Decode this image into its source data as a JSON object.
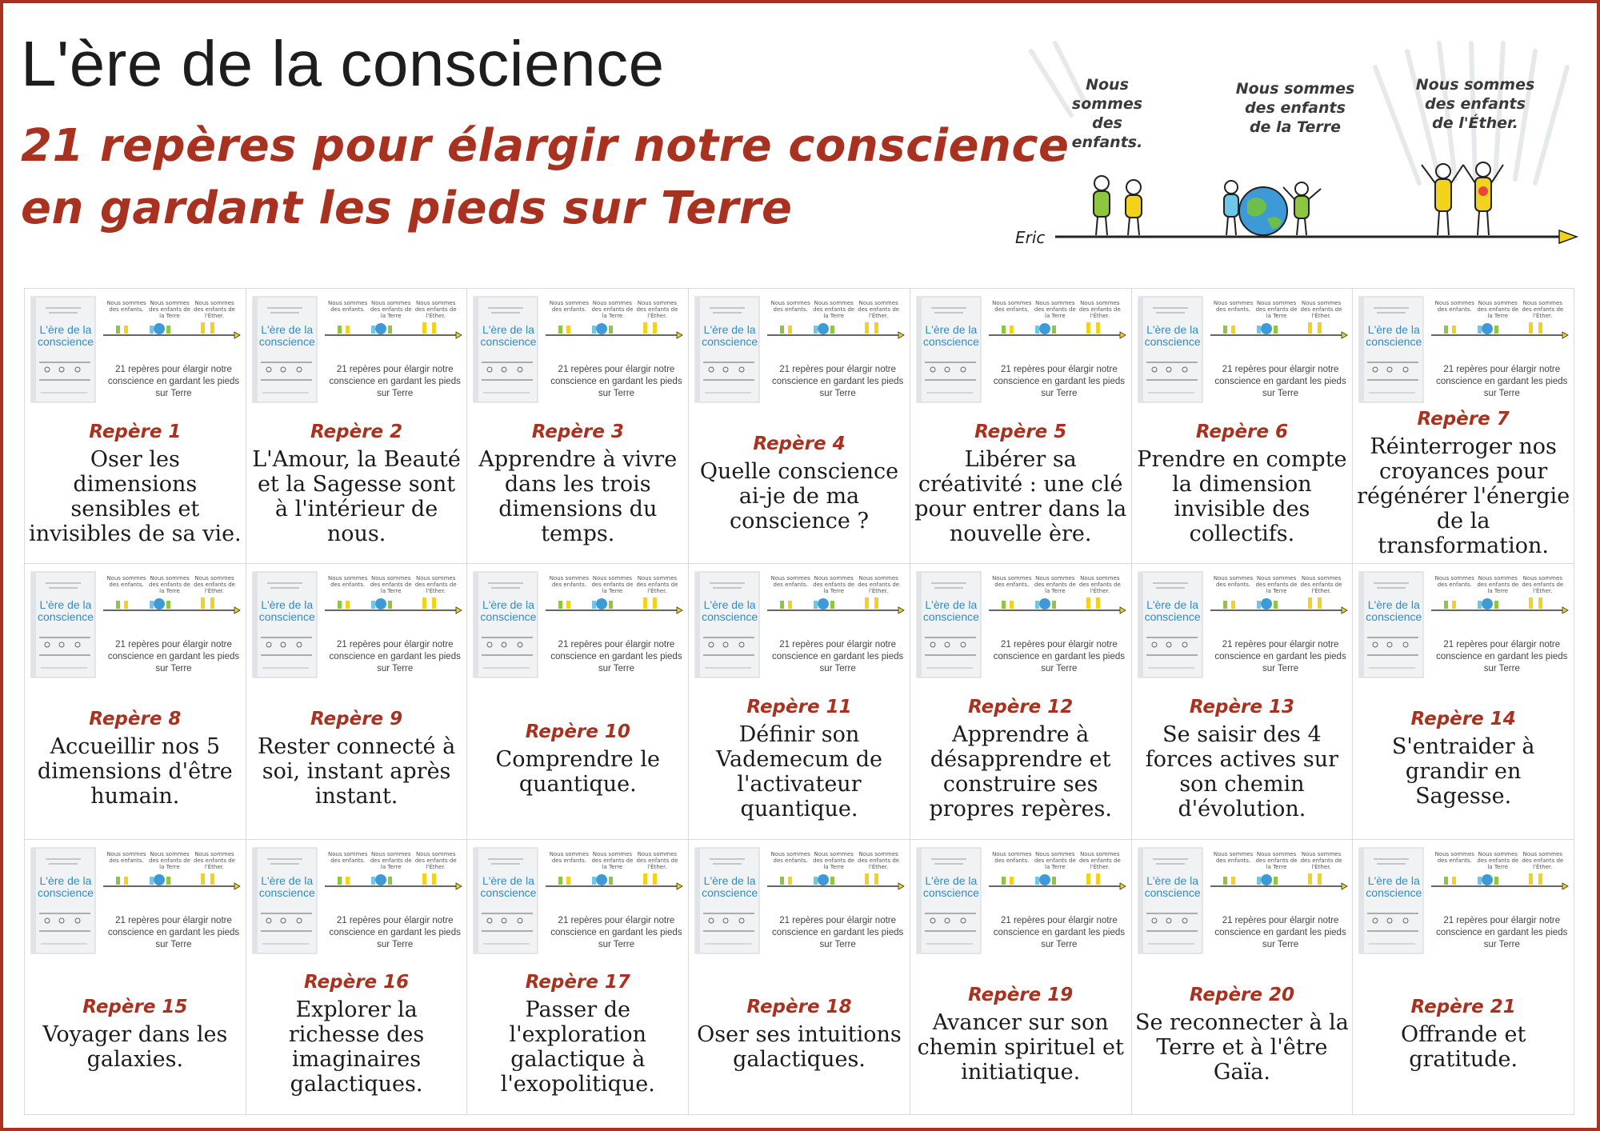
{
  "header": {
    "title": "L'ère de la conscience",
    "subtitle": "21 repères pour élargir notre conscience en gardant les pieds sur Terre",
    "illustration": {
      "captions": [
        "Nous sommes des enfants.",
        "Nous sommes des enfants de la Terre",
        "Nous sommes des enfants de l'Éther."
      ],
      "signature": "Eric"
    }
  },
  "card_image": {
    "book_title": "L'ère de la conscience",
    "captions": [
      "Nous sommes des enfants.",
      "Nous sommes des enfants de la Terre",
      "Nous sommes des enfants de l'Éther."
    ],
    "caption": "21 repères pour élargir notre conscience en gardant les pieds sur Terre"
  },
  "cards": [
    {
      "label": "Repère 1",
      "text": "Oser les dimensions sensibles et invisibles de sa vie."
    },
    {
      "label": "Repère 2",
      "text": "L'Amour, la Beauté et la Sagesse sont à l'intérieur de nous."
    },
    {
      "label": "Repère 3",
      "text": "Apprendre à vivre dans les trois dimensions du temps."
    },
    {
      "label": "Repère 4",
      "text": "Quelle conscience ai-je de ma conscience ?"
    },
    {
      "label": "Repère 5",
      "text": "Libérer sa créativité : une clé pour entrer dans la nouvelle ère."
    },
    {
      "label": "Repère 6",
      "text": "Prendre en compte la dimension invisible des collectifs."
    },
    {
      "label": "Repère 7",
      "text": "Réinterroger nos croyances pour régénérer l'énergie de la transformation."
    },
    {
      "label": "Repère 8",
      "text": "Accueillir nos 5 dimensions d'être humain."
    },
    {
      "label": "Repère 9",
      "text": "Rester connecté à soi, instant après instant."
    },
    {
      "label": "Repère 10",
      "text": "Comprendre le quantique."
    },
    {
      "label": "Repère 11",
      "text": "Définir son Vademecum de l'activateur quantique."
    },
    {
      "label": "Repère 12",
      "text": "Apprendre à désapprendre et construire ses propres repères."
    },
    {
      "label": "Repère 13",
      "text": "Se saisir des 4 forces actives sur son chemin d'évolution."
    },
    {
      "label": "Repère 14",
      "text": "S'entraider à grandir en Sagesse."
    },
    {
      "label": "Repère 15",
      "text": "Voyager dans les galaxies."
    },
    {
      "label": "Repère 16",
      "text": "Explorer la richesse des imaginaires galactiques."
    },
    {
      "label": "Repère 17",
      "text": "Passer de l'exploration galactique à l'exopolitique."
    },
    {
      "label": "Repère 18",
      "text": "Oser ses intuitions galactiques."
    },
    {
      "label": "Repère 19",
      "text": "Avancer sur son chemin spirituel et initiatique."
    },
    {
      "label": "Repère 20",
      "text": "Se reconnecter à la Terre et à l'être Gaïa."
    },
    {
      "label": "Repère 21",
      "text": "Offrande et gratitude."
    }
  ],
  "colors": {
    "accent": "#a8311f",
    "book_blue": "#2c8ec7",
    "timeline_yellow": "#f2d21b"
  }
}
